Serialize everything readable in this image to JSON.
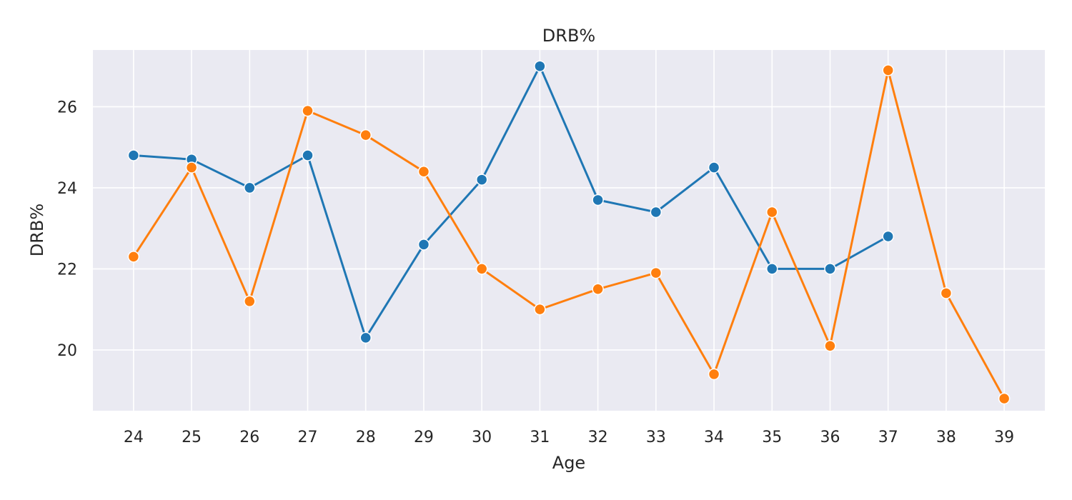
{
  "chart_data": {
    "type": "line",
    "title": "DRB%",
    "xlabel": "Age",
    "ylabel": "DRB%",
    "x": [
      24,
      25,
      26,
      27,
      28,
      29,
      30,
      31,
      32,
      33,
      34,
      35,
      36,
      37,
      38,
      39
    ],
    "xlim": [
      23.3,
      39.7
    ],
    "ylim": [
      18.5,
      27.4
    ],
    "yticks": [
      20,
      22,
      24,
      26
    ],
    "grid": true,
    "legend": "none",
    "series": [
      {
        "color": "#1f77b4",
        "x": [
          24,
          25,
          26,
          27,
          28,
          29,
          30,
          31,
          32,
          33,
          34,
          35,
          36,
          37
        ],
        "values": [
          24.8,
          24.7,
          24.0,
          24.8,
          20.3,
          22.6,
          24.2,
          27.0,
          23.7,
          23.4,
          24.5,
          22.0,
          22.0,
          22.8
        ]
      },
      {
        "color": "#ff7f0e",
        "x": [
          24,
          25,
          26,
          27,
          28,
          29,
          30,
          31,
          32,
          33,
          34,
          35,
          36,
          37,
          38,
          39
        ],
        "values": [
          22.3,
          24.5,
          21.2,
          25.9,
          25.3,
          24.4,
          22.0,
          21.0,
          21.5,
          21.9,
          19.4,
          23.4,
          20.1,
          26.9,
          21.4,
          18.8
        ]
      }
    ]
  },
  "colors": {
    "plot_background": "#eaeaf2",
    "grid": "#ffffff"
  }
}
